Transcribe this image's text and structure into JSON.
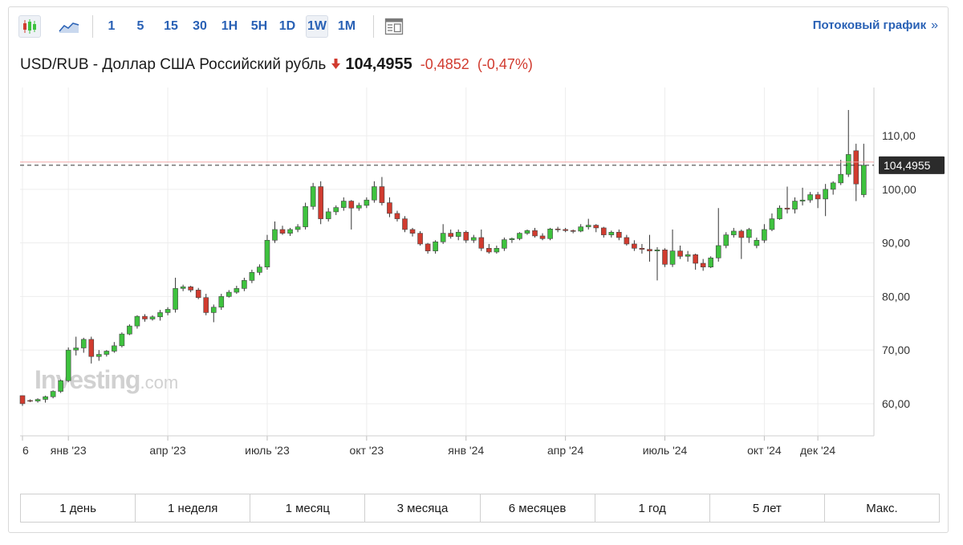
{
  "toolbar": {
    "chart_type_icons": [
      "candlestick-chart-icon",
      "area-chart-icon"
    ],
    "intervals": [
      "1",
      "5",
      "15",
      "30",
      "1H",
      "5H",
      "1D",
      "1W",
      "1M"
    ],
    "active_interval": "1W",
    "table_icon": "data-table-icon",
    "stream_link": "Потоковый график",
    "stream_arrow": "»"
  },
  "quote": {
    "name": "USD/RUB - Доллар США Российский рубль",
    "direction_icon": "down-arrow-icon",
    "price": "104,4955",
    "change": "-0,4852",
    "change_pct": "(-0,47%)",
    "colors": {
      "down": "#d13b2f",
      "up": "#3ec23e",
      "link": "#2961b5"
    }
  },
  "watermark": {
    "brand": "Investing",
    "suffix": ".com"
  },
  "chart_data": {
    "type": "candlestick",
    "interval": "1W",
    "ylim": [
      54,
      119
    ],
    "y_ticks": [
      60,
      70,
      80,
      90,
      100,
      110
    ],
    "y_tick_labels": [
      "60,00",
      "70,00",
      "80,00",
      "90,00",
      "100,00",
      "110,00"
    ],
    "last_price": 104.4955,
    "last_price_label": "104,4955",
    "x_tick_labels": [
      "6",
      "янв '23",
      "апр '23",
      "июль '23",
      "окт '23",
      "янв '24",
      "апр '24",
      "июль '24",
      "окт '24",
      "дек '24"
    ],
    "x_tick_positions": [
      0,
      6,
      19,
      32,
      45,
      58,
      71,
      84,
      97,
      104
    ],
    "grid": true,
    "candles": [
      [
        61.5,
        61.5,
        59.6,
        60.0
      ],
      [
        60.6,
        60.8,
        60.3,
        60.5
      ],
      [
        60.5,
        61.0,
        60.2,
        60.8
      ],
      [
        60.8,
        61.5,
        60.2,
        61.3
      ],
      [
        61.3,
        62.5,
        61.0,
        62.3
      ],
      [
        62.3,
        64.5,
        62.0,
        64.3
      ],
      [
        64.3,
        70.5,
        64.0,
        70.0
      ],
      [
        70.0,
        72.5,
        69.0,
        70.4
      ],
      [
        70.4,
        72.3,
        69.5,
        72.0
      ],
      [
        72.0,
        72.5,
        67.5,
        68.8
      ],
      [
        68.8,
        70.0,
        68.0,
        69.2
      ],
      [
        69.2,
        70.0,
        68.8,
        69.8
      ],
      [
        69.8,
        71.5,
        69.5,
        70.8
      ],
      [
        70.8,
        73.3,
        70.5,
        73.0
      ],
      [
        73.0,
        74.8,
        72.8,
        74.5
      ],
      [
        74.5,
        76.5,
        74.0,
        76.3
      ],
      [
        76.3,
        76.7,
        75.3,
        75.8
      ],
      [
        75.8,
        76.5,
        75.5,
        76.2
      ],
      [
        76.2,
        77.5,
        75.5,
        77.0
      ],
      [
        77.0,
        78.0,
        76.5,
        77.6
      ],
      [
        77.6,
        83.5,
        77.0,
        81.5
      ],
      [
        81.5,
        82.2,
        81.0,
        81.8
      ],
      [
        81.8,
        82.0,
        80.8,
        81.2
      ],
      [
        81.2,
        81.6,
        79.5,
        79.8
      ],
      [
        79.8,
        80.5,
        76.5,
        77.0
      ],
      [
        77.0,
        78.5,
        75.2,
        78.0
      ],
      [
        78.0,
        80.5,
        77.5,
        80.0
      ],
      [
        80.0,
        81.2,
        79.8,
        80.8
      ],
      [
        80.8,
        82.0,
        80.5,
        81.5
      ],
      [
        81.5,
        83.5,
        81.0,
        83.0
      ],
      [
        83.0,
        85.0,
        82.5,
        84.5
      ],
      [
        84.5,
        86.0,
        84.0,
        85.5
      ],
      [
        85.5,
        91.5,
        85.0,
        90.5
      ],
      [
        90.5,
        94.0,
        90.0,
        92.5
      ],
      [
        92.5,
        93.2,
        91.5,
        91.8
      ],
      [
        91.8,
        92.8,
        91.3,
        92.5
      ],
      [
        92.5,
        93.5,
        92.0,
        93.0
      ],
      [
        93.0,
        97.5,
        92.5,
        96.8
      ],
      [
        96.8,
        101.2,
        96.2,
        100.5
      ],
      [
        100.5,
        101.5,
        93.5,
        94.5
      ],
      [
        94.5,
        96.5,
        94.0,
        95.8
      ],
      [
        95.8,
        97.0,
        95.2,
        96.6
      ],
      [
        96.6,
        98.5,
        96.0,
        97.8
      ],
      [
        97.8,
        98.0,
        92.5,
        96.5
      ],
      [
        96.5,
        97.5,
        96.0,
        97.0
      ],
      [
        97.0,
        98.5,
        96.5,
        98.0
      ],
      [
        98.0,
        101.5,
        97.5,
        100.5
      ],
      [
        100.5,
        102.3,
        97.0,
        97.5
      ],
      [
        97.5,
        98.5,
        94.8,
        95.5
      ],
      [
        95.5,
        96.0,
        94.0,
        94.5
      ],
      [
        94.5,
        95.0,
        92.0,
        92.5
      ],
      [
        92.5,
        92.8,
        91.2,
        91.8
      ],
      [
        91.8,
        92.2,
        89.5,
        89.8
      ],
      [
        89.8,
        90.0,
        88.0,
        88.5
      ],
      [
        88.5,
        90.5,
        88.0,
        90.2
      ],
      [
        90.2,
        93.5,
        89.8,
        91.8
      ],
      [
        91.8,
        92.5,
        90.8,
        91.2
      ],
      [
        91.2,
        92.5,
        90.5,
        92.0
      ],
      [
        92.0,
        92.3,
        90.0,
        90.5
      ],
      [
        90.5,
        91.5,
        90.0,
        91.0
      ],
      [
        91.0,
        92.5,
        88.5,
        89.0
      ],
      [
        89.0,
        89.8,
        88.0,
        88.3
      ],
      [
        88.3,
        89.5,
        88.0,
        89.0
      ],
      [
        89.0,
        91.0,
        88.5,
        90.6
      ],
      [
        90.6,
        91.0,
        90.0,
        90.8
      ],
      [
        90.8,
        92.0,
        90.5,
        91.8
      ],
      [
        91.8,
        92.5,
        91.5,
        92.3
      ],
      [
        92.3,
        92.8,
        91.0,
        91.3
      ],
      [
        91.3,
        91.8,
        90.5,
        90.8
      ],
      [
        90.8,
        92.8,
        90.5,
        92.6
      ],
      [
        92.6,
        93.0,
        92.0,
        92.5
      ],
      [
        92.5,
        92.8,
        92.0,
        92.3
      ],
      [
        92.3,
        92.5,
        91.8,
        92.2
      ],
      [
        92.2,
        93.5,
        92.0,
        93.0
      ],
      [
        93.0,
        94.5,
        92.5,
        93.3
      ],
      [
        93.3,
        93.5,
        92.0,
        92.8
      ],
      [
        92.8,
        93.0,
        91.0,
        91.5
      ],
      [
        91.5,
        92.3,
        91.0,
        92.0
      ],
      [
        92.0,
        92.5,
        90.5,
        91.0
      ],
      [
        91.0,
        91.5,
        89.5,
        89.8
      ],
      [
        89.8,
        90.5,
        88.5,
        89.0
      ],
      [
        89.0,
        89.8,
        88.0,
        88.8
      ],
      [
        88.8,
        91.5,
        86.5,
        88.5
      ],
      [
        88.5,
        89.2,
        83.0,
        88.7
      ],
      [
        88.7,
        89.0,
        85.5,
        86.0
      ],
      [
        86.0,
        92.5,
        85.5,
        88.5
      ],
      [
        88.5,
        89.5,
        87.0,
        87.5
      ],
      [
        87.5,
        88.5,
        86.5,
        87.8
      ],
      [
        87.8,
        88.0,
        85.0,
        86.2
      ],
      [
        86.2,
        87.0,
        84.8,
        85.5
      ],
      [
        85.5,
        87.5,
        85.3,
        87.2
      ],
      [
        87.2,
        96.5,
        86.5,
        89.5
      ],
      [
        89.5,
        92.0,
        89.0,
        91.5
      ],
      [
        91.5,
        92.8,
        91.0,
        92.2
      ],
      [
        92.2,
        92.5,
        87.0,
        91.0
      ],
      [
        91.0,
        92.8,
        90.0,
        92.5
      ],
      [
        89.5,
        91.0,
        89.0,
        90.5
      ],
      [
        90.5,
        93.5,
        90.0,
        92.5
      ],
      [
        92.5,
        95.5,
        92.2,
        94.5
      ],
      [
        94.5,
        97.0,
        94.3,
        96.5
      ],
      [
        96.5,
        100.5,
        95.5,
        96.3
      ],
      [
        96.3,
        98.5,
        95.5,
        97.8
      ],
      [
        97.8,
        100.3,
        97.0,
        98.0
      ],
      [
        98.0,
        99.5,
        97.5,
        99.0
      ],
      [
        99.0,
        99.5,
        96.5,
        98.2
      ],
      [
        98.2,
        101.0,
        95.0,
        100.0
      ],
      [
        100.0,
        101.5,
        99.0,
        101.2
      ],
      [
        101.2,
        105.5,
        100.8,
        102.8
      ],
      [
        102.8,
        114.8,
        102.3,
        106.5
      ],
      [
        107.2,
        108.5,
        97.8,
        101.0
      ],
      [
        99.0,
        108.5,
        98.5,
        104.4955
      ]
    ]
  },
  "ranges": [
    "1 день",
    "1 неделя",
    "1 месяц",
    "3 месяца",
    "6 месяцев",
    "1 год",
    "5 лет",
    "Макс."
  ]
}
